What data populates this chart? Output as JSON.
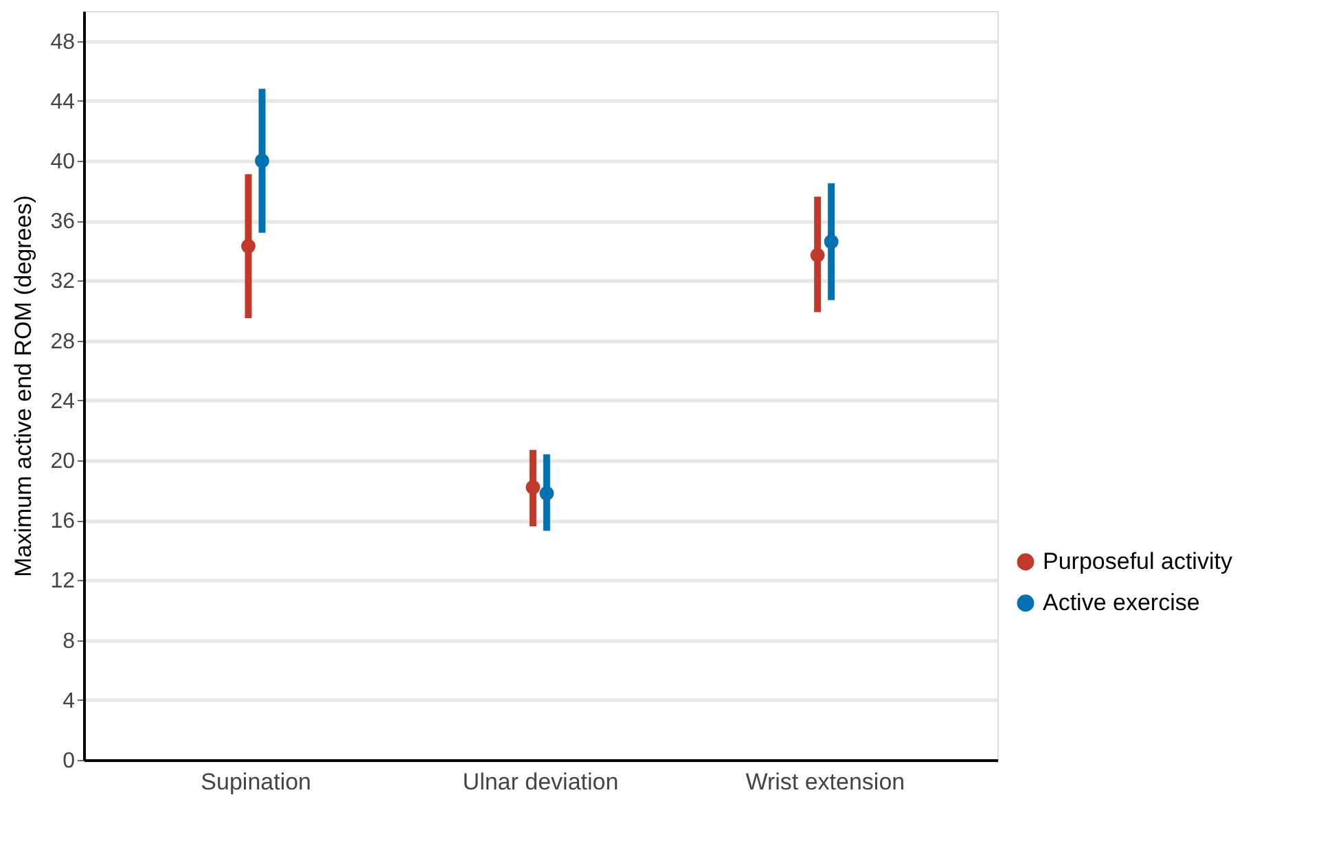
{
  "chart_data": {
    "type": "scatter",
    "ylabel": "Maximum active end ROM (degrees)",
    "categories": [
      "Supination",
      "Ulnar deviation",
      "Wrist extension"
    ],
    "series": [
      {
        "name": "Purposeful activity",
        "color": "#c0392b",
        "values": [
          34.3,
          18.2,
          33.7
        ],
        "errors": [
          [
            29.5,
            39.1
          ],
          [
            15.6,
            20.7
          ],
          [
            29.9,
            37.6
          ]
        ]
      },
      {
        "name": "Active exercise",
        "color": "#0072b2",
        "values": [
          40.0,
          17.8,
          34.6
        ],
        "errors": [
          [
            35.2,
            44.8
          ],
          [
            15.3,
            20.4
          ],
          [
            30.7,
            38.5
          ]
        ]
      }
    ],
    "ylim": [
      0,
      50
    ],
    "yticks": [
      0,
      4,
      8,
      12,
      16,
      20,
      24,
      28,
      32,
      36,
      40,
      44,
      48
    ],
    "grid": "y",
    "legend": "right",
    "marker": "circle"
  }
}
